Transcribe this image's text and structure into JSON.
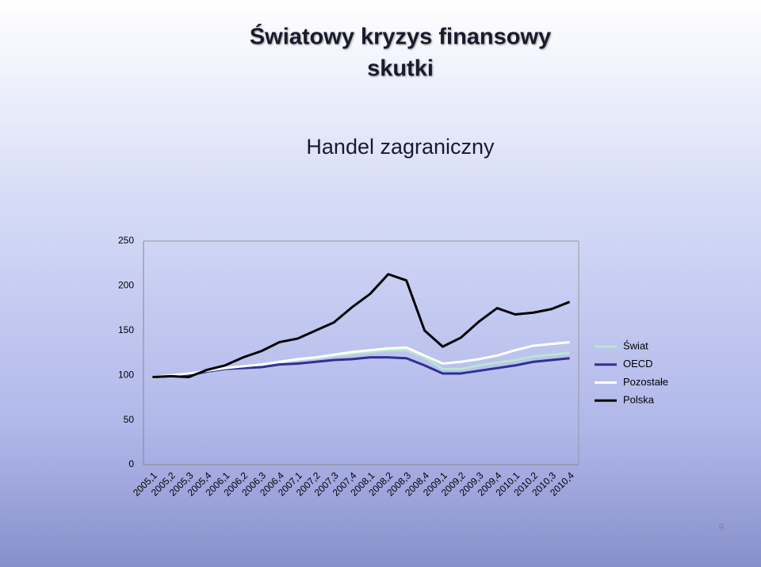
{
  "slide": {
    "title": "Światowy kryzys finansowy",
    "subtitle": "skutki",
    "page_number": 9
  },
  "chart_data": {
    "type": "line",
    "title": "Handel zagraniczny",
    "categories": [
      "2005,1",
      "2005,2",
      "2005,3",
      "2005,4",
      "2006,1",
      "2006,2",
      "2006,3",
      "2006,4",
      "2007,1",
      "2007,2",
      "2007,3",
      "2007,4",
      "2008,1",
      "2008,2",
      "2008,3",
      "2008,4",
      "2009,1",
      "2009,2",
      "2009,3",
      "2009,4",
      "2010,1",
      "2010,2",
      "2010,3",
      "2010,4"
    ],
    "series": [
      {
        "name": "Świat",
        "color": "#b8e6d2",
        "values": [
          97,
          99,
          101,
          104,
          107,
          109,
          111,
          114,
          117,
          119,
          122,
          124,
          126,
          128,
          128,
          120,
          107,
          107,
          111,
          114,
          117,
          121,
          123,
          125
        ]
      },
      {
        "name": "OECD",
        "color": "#2e3192",
        "values": [
          98,
          99,
          100,
          104,
          107,
          108,
          109,
          112,
          113,
          115,
          117,
          118,
          120,
          120,
          119,
          111,
          102,
          102,
          105,
          108,
          111,
          115,
          117,
          119
        ]
      },
      {
        "name": "Pozostałe",
        "color": "#ffffff",
        "values": [
          98,
          100,
          102,
          105,
          108,
          110,
          112,
          115,
          118,
          120,
          123,
          126,
          128,
          130,
          131,
          122,
          113,
          115,
          118,
          122,
          128,
          133,
          135,
          137
        ]
      },
      {
        "name": "Polska",
        "color": "#000000",
        "values": [
          98,
          99,
          98,
          106,
          111,
          120,
          127,
          137,
          141,
          150,
          159,
          176,
          191,
          213,
          206,
          150,
          132,
          142,
          160,
          175,
          168,
          170,
          174,
          182
        ]
      }
    ],
    "ylim": [
      0,
      250
    ],
    "yticks": [
      0,
      50,
      100,
      150,
      200,
      250
    ],
    "grid": false,
    "legend": "right"
  }
}
